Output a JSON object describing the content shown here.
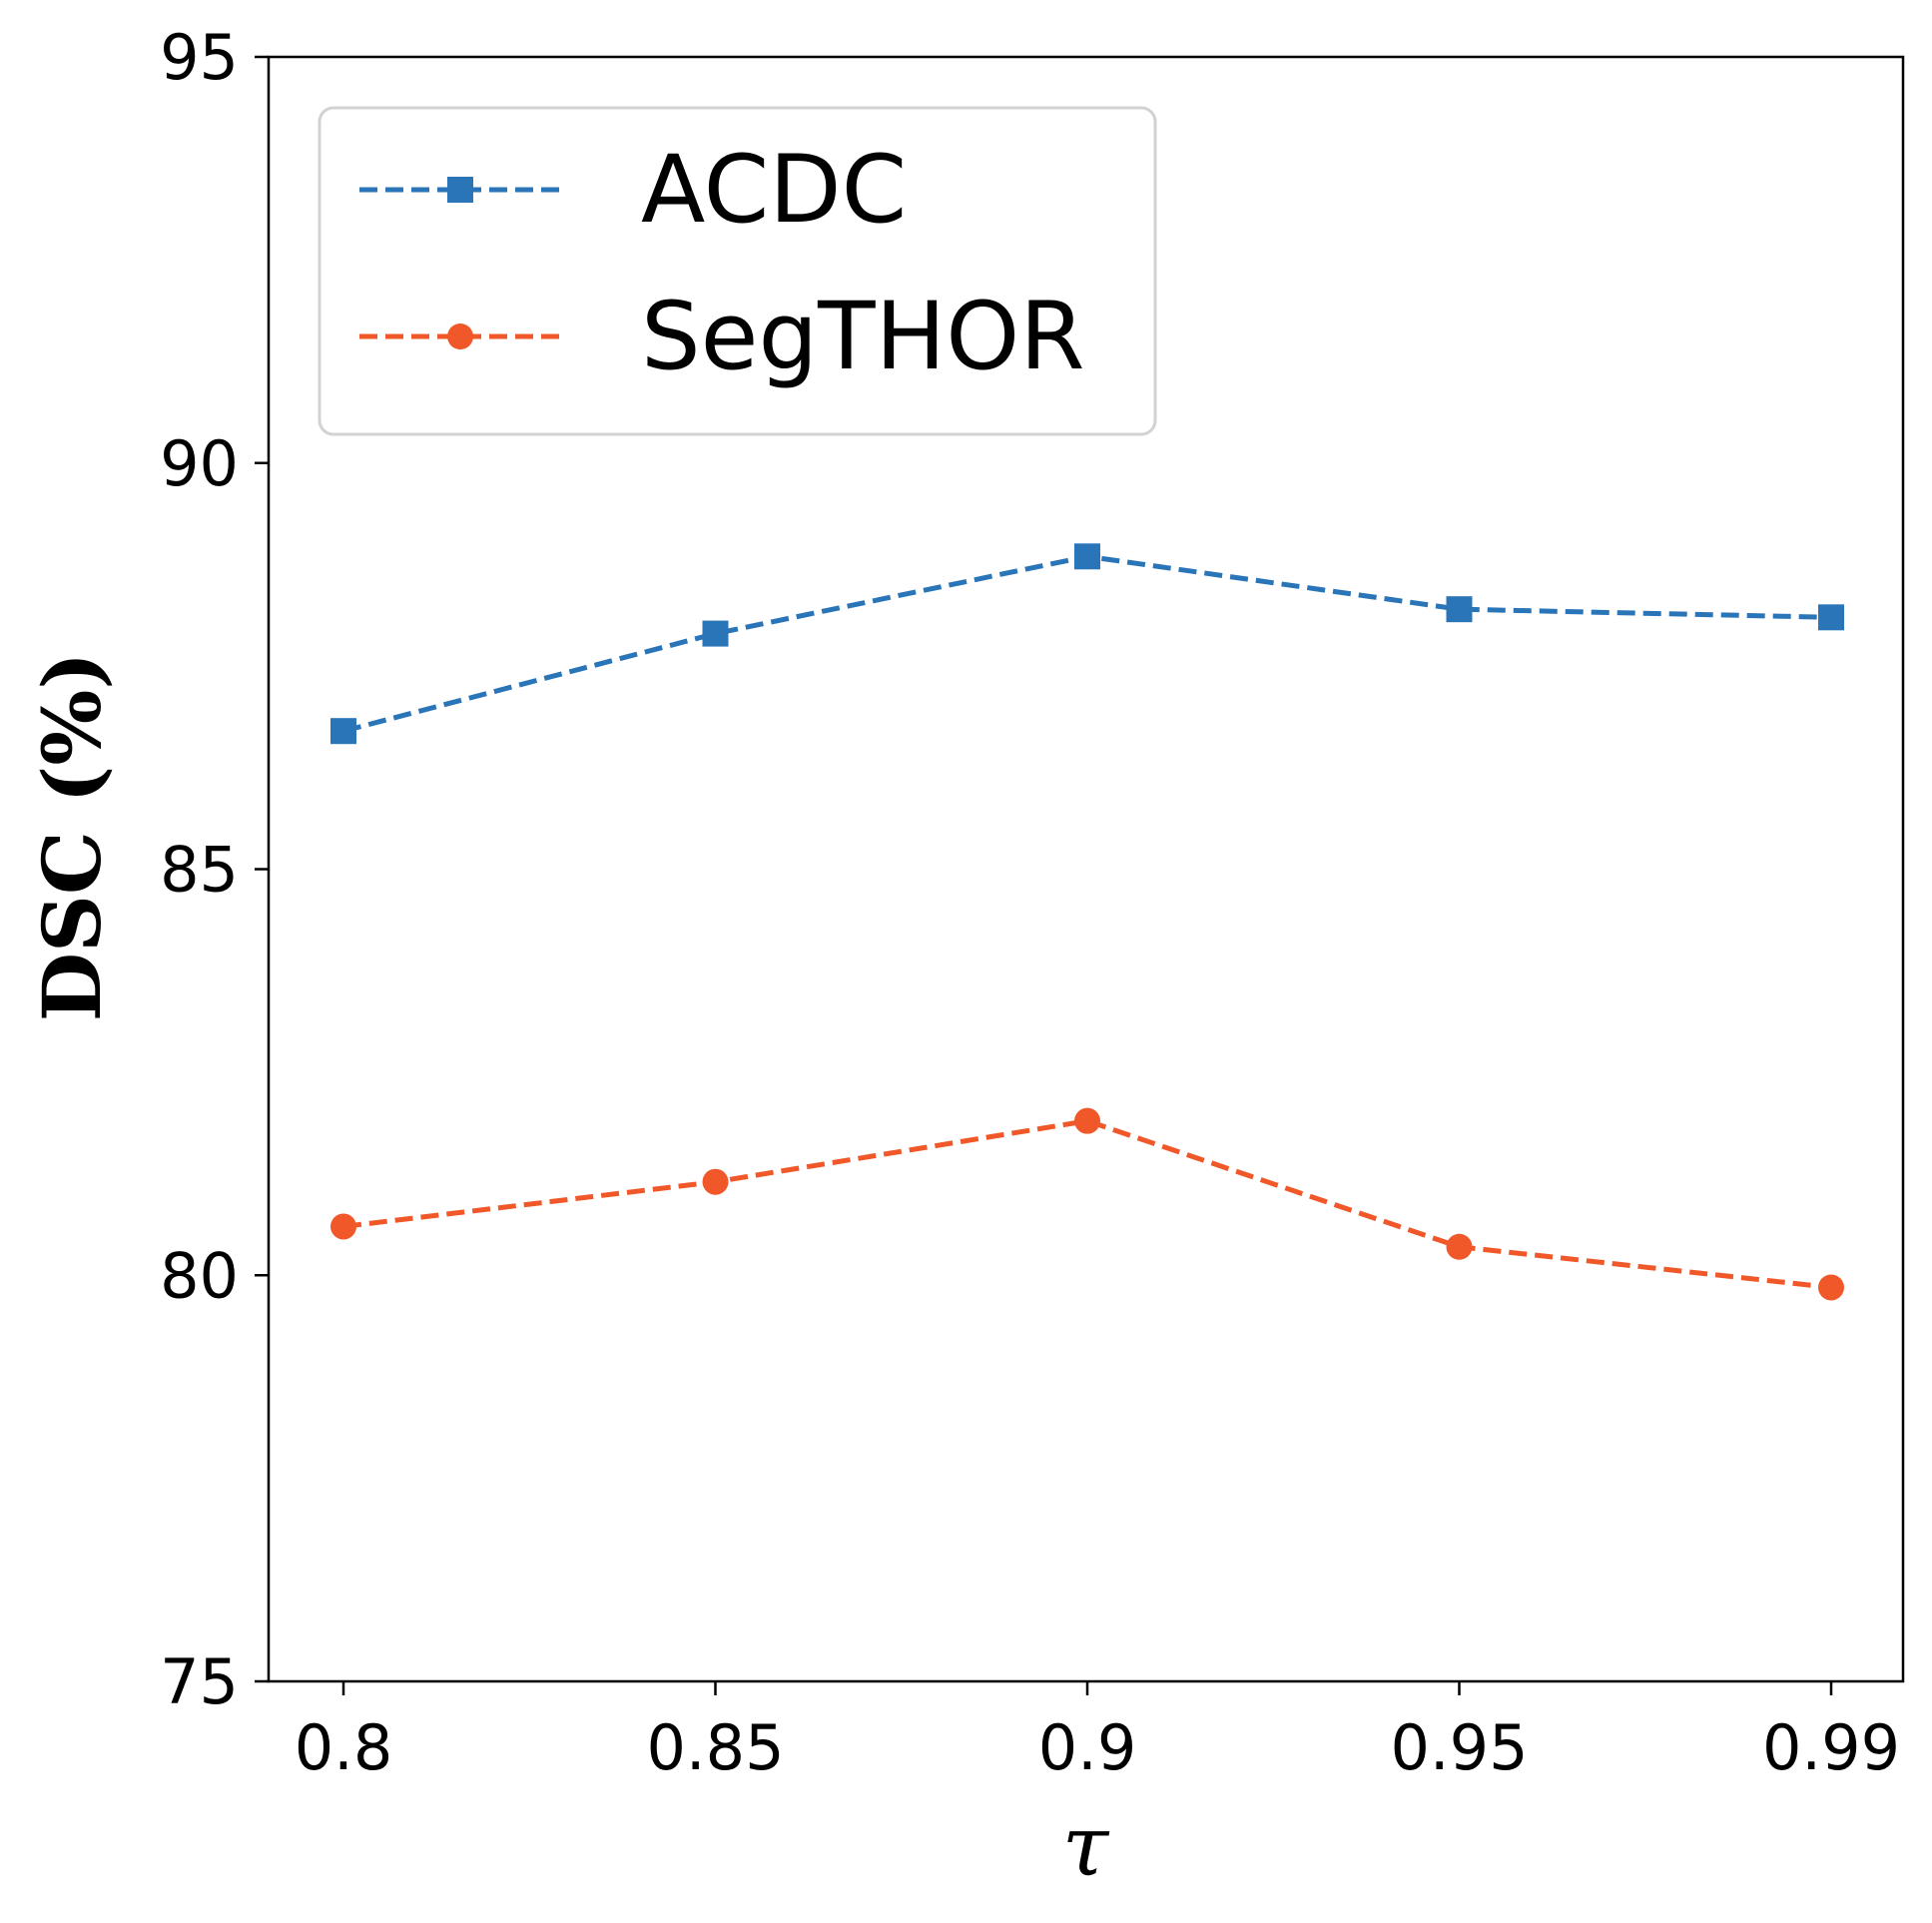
{
  "chart_data": {
    "type": "line",
    "title": "",
    "xlabel": "τ",
    "ylabel": "DSC (%)",
    "categories": [
      "0.8",
      "0.85",
      "0.9",
      "0.95",
      "0.99"
    ],
    "ylim": [
      75,
      95
    ],
    "yticks": [
      "75",
      "80",
      "85",
      "90",
      "95"
    ],
    "grid": false,
    "legend_position": "top-left",
    "series": [
      {
        "name": "ACDC",
        "values": [
          86.7,
          87.9,
          88.85,
          88.2,
          88.1
        ],
        "color": "#2a75b8",
        "marker": "square",
        "linestyle": "dashed"
      },
      {
        "name": "SegTHOR",
        "values": [
          80.6,
          81.15,
          81.9,
          80.35,
          79.85
        ],
        "color": "#f0582a",
        "marker": "circle",
        "linestyle": "dashed"
      }
    ]
  }
}
